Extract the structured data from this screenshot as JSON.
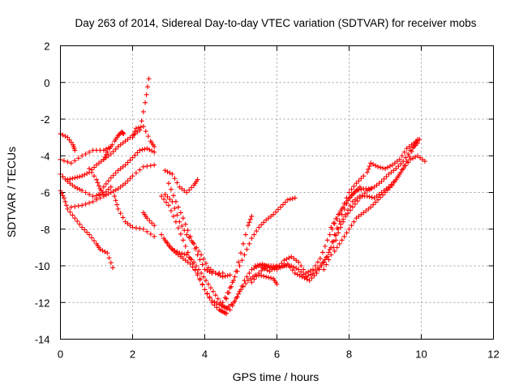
{
  "chart_data": {
    "type": "scatter",
    "title": "Day 263 of 2014, Sidereal Day-to-day VTEC variation (SDTVAR) for receiver mobs",
    "xlabel": "GPS time / hours",
    "ylabel": "SDTVAR / TECUs",
    "xlim": [
      0,
      12
    ],
    "ylim": [
      -14,
      2
    ],
    "xticks": [
      0,
      2,
      4,
      6,
      8,
      10,
      12
    ],
    "yticks": [
      2,
      0,
      -2,
      -4,
      -6,
      -8,
      -10,
      -12,
      -14
    ],
    "grid": true,
    "marker": "plus",
    "color": "#ff0000",
    "series": [
      {
        "points": [
          [
            0,
            -2.8
          ],
          [
            0.2,
            -3.0
          ],
          [
            0.35,
            -3.4
          ],
          [
            0.4,
            -3.7
          ]
        ]
      },
      {
        "points": [
          [
            0,
            -4.2
          ],
          [
            0.3,
            -4.4
          ],
          [
            0.6,
            -4.0
          ],
          [
            0.9,
            -3.7
          ],
          [
            1.2,
            -3.7
          ],
          [
            1.4,
            -3.5
          ]
        ]
      },
      {
        "points": [
          [
            0,
            -5.0
          ],
          [
            0.2,
            -5.4
          ],
          [
            0.4,
            -5.7
          ],
          [
            0.6,
            -5.9
          ],
          [
            0.9,
            -6.2
          ],
          [
            1.2,
            -6.1
          ],
          [
            1.4,
            -5.7
          ]
        ]
      },
      {
        "points": [
          [
            0,
            -5.9
          ],
          [
            0.1,
            -6.3
          ],
          [
            0.2,
            -6.9
          ],
          [
            0.4,
            -7.4
          ],
          [
            0.6,
            -7.9
          ],
          [
            0.8,
            -8.3
          ],
          [
            1.0,
            -8.8
          ],
          [
            1.1,
            -9.1
          ],
          [
            1.3,
            -9.3
          ],
          [
            1.45,
            -10.1
          ]
        ]
      },
      {
        "points": [
          [
            0.3,
            -6.8
          ],
          [
            0.6,
            -6.7
          ],
          [
            0.9,
            -6.5
          ],
          [
            1.2,
            -6.2
          ],
          [
            1.4,
            -6.0
          ],
          [
            1.6,
            -5.8
          ],
          [
            1.8,
            -5.5
          ],
          [
            2.0,
            -5.1
          ],
          [
            2.3,
            -4.6
          ],
          [
            2.6,
            -4.5
          ]
        ]
      },
      {
        "points": [
          [
            0.2,
            -5.3
          ],
          [
            0.4,
            -5.2
          ],
          [
            0.6,
            -5.1
          ],
          [
            0.8,
            -4.9
          ],
          [
            1.0,
            -4.5
          ],
          [
            1.2,
            -4.2
          ],
          [
            1.4,
            -3.9
          ],
          [
            1.6,
            -3.5
          ],
          [
            1.8,
            -3.2
          ],
          [
            2.0,
            -2.9
          ],
          [
            2.2,
            -2.6
          ],
          [
            2.35,
            -1.1
          ],
          [
            2.45,
            0.2
          ]
        ]
      },
      {
        "points": [
          [
            1.0,
            -6.3
          ],
          [
            1.2,
            -5.7
          ],
          [
            1.4,
            -5.2
          ],
          [
            1.6,
            -4.8
          ],
          [
            1.8,
            -4.5
          ],
          [
            2.0,
            -4.1
          ],
          [
            2.2,
            -3.7
          ],
          [
            2.4,
            -3.6
          ],
          [
            2.6,
            -3.8
          ]
        ]
      },
      {
        "points": [
          [
            1.5,
            -6.2
          ],
          [
            1.6,
            -6.9
          ],
          [
            1.8,
            -7.6
          ],
          [
            2.0,
            -7.9
          ],
          [
            2.3,
            -8.0
          ],
          [
            2.6,
            -8.4
          ]
        ]
      },
      {
        "points": [
          [
            0.8,
            -4.7
          ],
          [
            1.0,
            -5.3
          ],
          [
            1.1,
            -5.8
          ],
          [
            1.2,
            -6.1
          ]
        ]
      },
      {
        "points": [
          [
            1.2,
            -4.2
          ],
          [
            1.3,
            -3.8
          ],
          [
            1.5,
            -3.2
          ],
          [
            1.6,
            -2.9
          ],
          [
            1.7,
            -2.7
          ],
          [
            1.75,
            -2.8
          ]
        ]
      },
      {
        "points": [
          [
            2.0,
            -3.0
          ],
          [
            2.1,
            -2.5
          ],
          [
            2.3,
            -2.4
          ],
          [
            2.5,
            -3.2
          ],
          [
            2.6,
            -3.5
          ]
        ]
      },
      {
        "points": [
          [
            2.3,
            -7.1
          ],
          [
            2.4,
            -7.4
          ],
          [
            2.6,
            -7.8
          ]
        ]
      },
      {
        "points": [
          [
            2.9,
            -4.8
          ],
          [
            3.1,
            -5.0
          ],
          [
            3.3,
            -5.7
          ],
          [
            3.5,
            -6.0
          ],
          [
            3.7,
            -5.6
          ],
          [
            3.8,
            -5.3
          ]
        ]
      },
      {
        "points": [
          [
            2.8,
            -6.2
          ],
          [
            3.0,
            -6.7
          ],
          [
            3.2,
            -7.6
          ],
          [
            3.4,
            -8.6
          ],
          [
            3.6,
            -9.6
          ],
          [
            3.8,
            -10.5
          ],
          [
            4.0,
            -11.3
          ],
          [
            4.2,
            -12.0
          ],
          [
            4.4,
            -12.4
          ],
          [
            4.5,
            -12.5
          ],
          [
            4.6,
            -12.6
          ]
        ]
      },
      {
        "points": [
          [
            2.9,
            -6.1
          ],
          [
            3.1,
            -6.5
          ],
          [
            3.3,
            -7.6
          ],
          [
            3.5,
            -8.3
          ],
          [
            3.7,
            -8.8
          ],
          [
            3.9,
            -9.4
          ],
          [
            4.1,
            -10.1
          ],
          [
            4.3,
            -10.4
          ],
          [
            4.5,
            -10.6
          ],
          [
            4.7,
            -10.5
          ]
        ]
      },
      {
        "points": [
          [
            3.0,
            -5.5
          ],
          [
            3.2,
            -6.5
          ],
          [
            3.4,
            -7.4
          ],
          [
            3.6,
            -8.4
          ],
          [
            3.8,
            -9.4
          ],
          [
            4.0,
            -10.2
          ],
          [
            4.2,
            -10.4
          ],
          [
            4.5,
            -10.4
          ]
        ]
      },
      {
        "points": [
          [
            2.8,
            -8.3
          ],
          [
            3.0,
            -8.9
          ],
          [
            3.2,
            -9.3
          ],
          [
            3.4,
            -9.6
          ],
          [
            3.6,
            -9.9
          ],
          [
            3.8,
            -10.4
          ],
          [
            4.0,
            -11.3
          ],
          [
            4.2,
            -11.9
          ],
          [
            4.4,
            -12.1
          ],
          [
            4.6,
            -12.3
          ],
          [
            4.8,
            -12.0
          ],
          [
            5.0,
            -11.3
          ],
          [
            5.2,
            -10.8
          ],
          [
            5.4,
            -10.5
          ]
        ]
      },
      {
        "points": [
          [
            2.9,
            -8.6
          ],
          [
            3.1,
            -9.1
          ],
          [
            3.3,
            -9.3
          ],
          [
            3.5,
            -9.4
          ],
          [
            3.7,
            -9.8
          ],
          [
            3.9,
            -10.4
          ],
          [
            4.1,
            -11.0
          ],
          [
            4.3,
            -11.6
          ],
          [
            4.5,
            -12.2
          ],
          [
            4.7,
            -12.4
          ],
          [
            4.9,
            -11.7
          ],
          [
            5.1,
            -10.8
          ],
          [
            5.3,
            -10.2
          ],
          [
            5.5,
            -10.0
          ],
          [
            5.7,
            -10.0
          ],
          [
            5.9,
            -10.0
          ]
        ]
      },
      {
        "points": [
          [
            4.5,
            -12.0
          ],
          [
            4.7,
            -11.2
          ],
          [
            4.9,
            -10.3
          ],
          [
            5.1,
            -9.4
          ],
          [
            5.3,
            -8.5
          ],
          [
            5.5,
            -7.9
          ],
          [
            5.7,
            -7.5
          ],
          [
            5.9,
            -7.2
          ],
          [
            6.1,
            -6.8
          ],
          [
            6.3,
            -6.4
          ],
          [
            6.5,
            -6.3
          ]
        ]
      },
      {
        "points": [
          [
            4.6,
            -11.8
          ],
          [
            4.8,
            -10.8
          ],
          [
            5.0,
            -9.3
          ],
          [
            5.2,
            -7.8
          ],
          [
            5.3,
            -7.3
          ]
        ]
      },
      {
        "points": [
          [
            5.4,
            -10.0
          ],
          [
            5.6,
            -9.9
          ],
          [
            5.8,
            -10.1
          ],
          [
            6.0,
            -10.2
          ],
          [
            6.2,
            -9.7
          ],
          [
            6.4,
            -9.5
          ],
          [
            6.6,
            -9.8
          ],
          [
            6.8,
            -10.4
          ],
          [
            7.0,
            -10.2
          ],
          [
            7.2,
            -9.6
          ],
          [
            7.4,
            -8.6
          ],
          [
            7.6,
            -7.7
          ],
          [
            7.8,
            -6.9
          ],
          [
            8.0,
            -6.0
          ],
          [
            8.2,
            -5.5
          ],
          [
            8.4,
            -5.1
          ]
        ]
      },
      {
        "points": [
          [
            5.6,
            -10.1
          ],
          [
            5.8,
            -10.3
          ],
          [
            6.0,
            -10.0
          ],
          [
            6.2,
            -10.0
          ],
          [
            6.4,
            -10.0
          ],
          [
            6.6,
            -10.2
          ],
          [
            6.8,
            -10.6
          ],
          [
            7.0,
            -10.4
          ],
          [
            7.2,
            -10.0
          ],
          [
            7.4,
            -9.5
          ],
          [
            7.6,
            -8.3
          ],
          [
            7.8,
            -7.2
          ],
          [
            8.0,
            -6.3
          ],
          [
            8.2,
            -5.9
          ],
          [
            8.4,
            -5.8
          ],
          [
            8.6,
            -5.8
          ]
        ]
      },
      {
        "points": [
          [
            5.3,
            -10.9
          ],
          [
            5.5,
            -10.4
          ],
          [
            5.7,
            -10.0
          ],
          [
            5.9,
            -10.0
          ],
          [
            6.1,
            -10.1
          ],
          [
            6.3,
            -9.9
          ],
          [
            6.5,
            -10.4
          ],
          [
            6.7,
            -10.6
          ],
          [
            6.9,
            -10.8
          ],
          [
            7.1,
            -10.4
          ],
          [
            7.3,
            -9.8
          ],
          [
            7.5,
            -9.0
          ],
          [
            7.7,
            -8.0
          ],
          [
            7.9,
            -7.2
          ],
          [
            8.1,
            -6.5
          ],
          [
            8.3,
            -6.2
          ],
          [
            8.5,
            -6.2
          ],
          [
            8.7,
            -6.3
          ],
          [
            8.9,
            -6.0
          ],
          [
            9.1,
            -5.7
          ],
          [
            9.3,
            -5.3
          ],
          [
            9.5,
            -4.7
          ],
          [
            9.7,
            -4.2
          ],
          [
            9.9,
            -4.0
          ],
          [
            10.1,
            -4.3
          ]
        ]
      },
      {
        "points": [
          [
            5.5,
            -10.5
          ],
          [
            5.7,
            -10.6
          ],
          [
            5.9,
            -10.7
          ],
          [
            6.0,
            -11.0
          ]
        ]
      },
      {
        "points": [
          [
            7.3,
            -10.2
          ],
          [
            7.5,
            -9.4
          ],
          [
            7.7,
            -8.2
          ],
          [
            7.9,
            -7.3
          ],
          [
            8.1,
            -6.8
          ],
          [
            8.3,
            -6.3
          ],
          [
            8.5,
            -5.9
          ],
          [
            8.7,
            -5.7
          ],
          [
            8.9,
            -5.4
          ],
          [
            9.1,
            -5.0
          ],
          [
            9.3,
            -4.7
          ],
          [
            9.5,
            -4.3
          ],
          [
            9.7,
            -3.7
          ],
          [
            9.9,
            -3.3
          ]
        ]
      },
      {
        "points": [
          [
            7.6,
            -9.2
          ],
          [
            7.8,
            -8.6
          ],
          [
            8.0,
            -8.0
          ],
          [
            8.2,
            -7.4
          ],
          [
            8.4,
            -7.1
          ],
          [
            8.6,
            -6.8
          ],
          [
            8.8,
            -6.4
          ],
          [
            9.0,
            -6.0
          ],
          [
            9.2,
            -5.6
          ],
          [
            9.4,
            -5.0
          ],
          [
            9.6,
            -4.3
          ],
          [
            9.8,
            -3.5
          ],
          [
            9.9,
            -3.1
          ]
        ]
      },
      {
        "points": [
          [
            8.5,
            -4.9
          ],
          [
            8.6,
            -4.4
          ],
          [
            8.8,
            -4.6
          ],
          [
            9.0,
            -4.7
          ],
          [
            9.2,
            -4.5
          ],
          [
            9.4,
            -4.2
          ],
          [
            9.6,
            -3.6
          ],
          [
            9.8,
            -3.3
          ],
          [
            9.95,
            -3.1
          ]
        ]
      },
      {
        "points": [
          [
            7.5,
            -7.9
          ],
          [
            7.7,
            -7.2
          ],
          [
            7.9,
            -6.6
          ],
          [
            8.1,
            -6.1
          ],
          [
            8.3,
            -5.7
          ]
        ]
      }
    ]
  }
}
